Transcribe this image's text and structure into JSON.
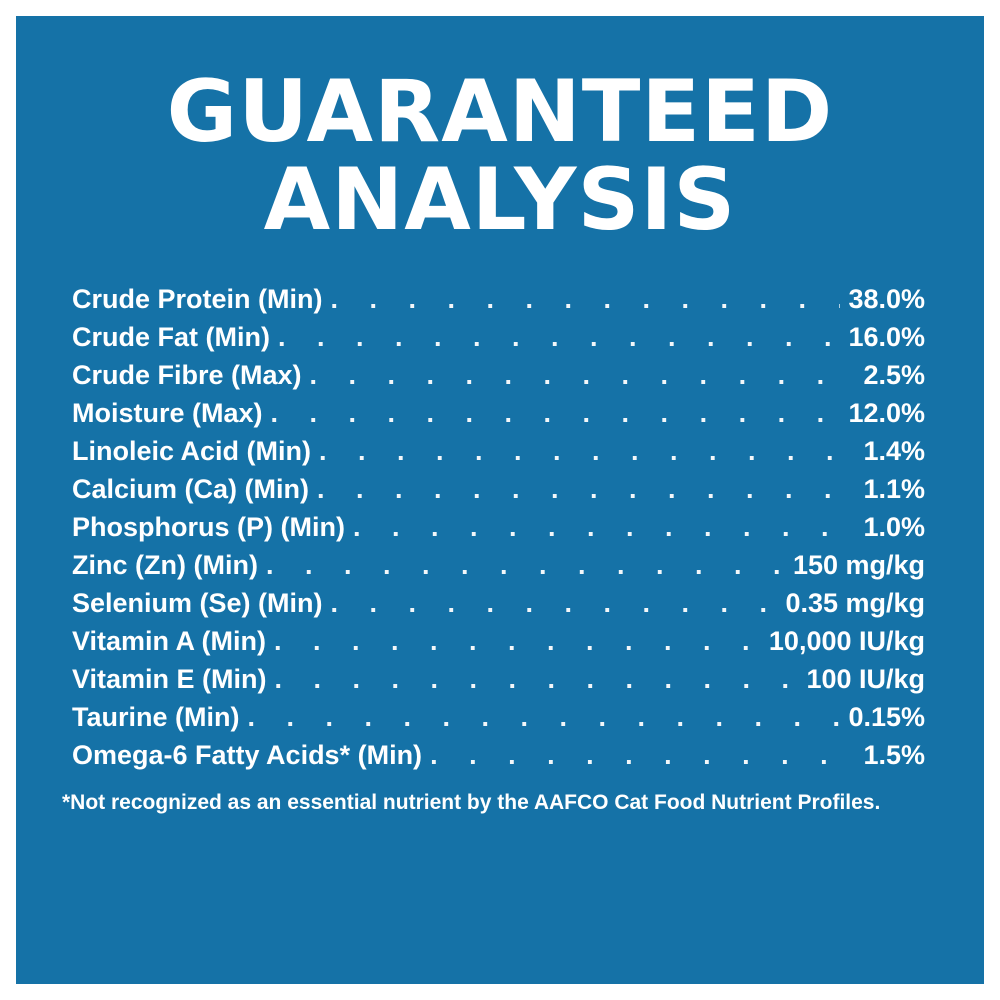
{
  "title": {
    "line1": "GUARANTEED",
    "line2": "ANALYSIS"
  },
  "analysis": [
    {
      "label": "Crude Protein (Min)",
      "value": "38.0%"
    },
    {
      "label": "Crude Fat (Min)",
      "value": "16.0%"
    },
    {
      "label": "Crude Fibre (Max)",
      "value": "2.5%"
    },
    {
      "label": "Moisture (Max)",
      "value": "12.0%"
    },
    {
      "label": "Linoleic Acid (Min)",
      "value": "1.4%"
    },
    {
      "label": "Calcium (Ca) (Min)",
      "value": "1.1%"
    },
    {
      "label": "Phosphorus (P) (Min)",
      "value": "1.0%"
    },
    {
      "label": "Zinc (Zn) (Min)",
      "value": "150 mg/kg"
    },
    {
      "label": "Selenium (Se) (Min)",
      "value": "0.35 mg/kg"
    },
    {
      "label": "Vitamin A (Min)",
      "value": "10,000 IU/kg"
    },
    {
      "label": "Vitamin E (Min)",
      "value": "100 IU/kg"
    },
    {
      "label": "Taurine (Min)",
      "value": "0.15%"
    },
    {
      "label": "Omega-6 Fatty Acids* (Min)",
      "value": "1.5%"
    }
  ],
  "footnote": "*Not recognized as an essential nutrient by the AAFCO Cat Food Nutrient Profiles.",
  "colors": {
    "background": "#1572a7",
    "text": "#ffffff",
    "border": "#ffffff"
  }
}
